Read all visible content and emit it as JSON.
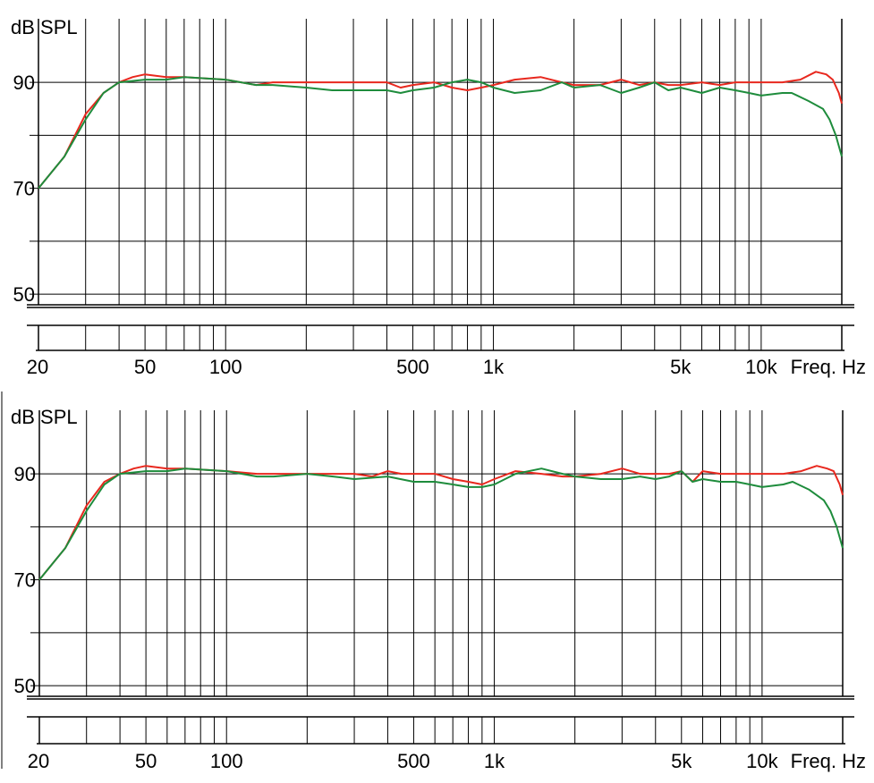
{
  "chart_data": [
    {
      "type": "line",
      "ylabel": "dB SPL",
      "xlabel": "Freq. Hz",
      "xscale": "log",
      "xlim": [
        20,
        20000
      ],
      "ylim": [
        48,
        102
      ],
      "ytick_labels": [
        {
          "v": 90,
          "t": "90"
        },
        {
          "v": 70,
          "t": "70"
        },
        {
          "v": 50,
          "t": "50"
        }
      ],
      "xtick_labels": [
        {
          "f": 20,
          "t": "20"
        },
        {
          "f": 50,
          "t": "50"
        },
        {
          "f": 100,
          "t": "100"
        },
        {
          "f": 500,
          "t": "500"
        },
        {
          "f": 1000,
          "t": "1k"
        },
        {
          "f": 5000,
          "t": "5k"
        },
        {
          "f": 10000,
          "t": "10k"
        }
      ],
      "series": [
        {
          "name": "red",
          "color": "#e8281e",
          "points": [
            [
              20,
              70
            ],
            [
              25,
              76
            ],
            [
              30,
              84
            ],
            [
              35,
              88
            ],
            [
              40,
              90
            ],
            [
              45,
              91
            ],
            [
              50,
              91.5
            ],
            [
              60,
              91
            ],
            [
              70,
              91
            ],
            [
              100,
              90.5
            ],
            [
              130,
              89.5
            ],
            [
              150,
              90
            ],
            [
              200,
              90
            ],
            [
              300,
              90
            ],
            [
              400,
              90
            ],
            [
              450,
              89
            ],
            [
              500,
              89.5
            ],
            [
              600,
              90
            ],
            [
              700,
              89
            ],
            [
              800,
              88.5
            ],
            [
              900,
              89
            ],
            [
              1000,
              89.5
            ],
            [
              1200,
              90.5
            ],
            [
              1500,
              91
            ],
            [
              1800,
              90
            ],
            [
              2000,
              89.5
            ],
            [
              2500,
              89.5
            ],
            [
              3000,
              90.5
            ],
            [
              3500,
              89.5
            ],
            [
              4000,
              90
            ],
            [
              4500,
              89.5
            ],
            [
              5000,
              89.5
            ],
            [
              6000,
              90
            ],
            [
              7000,
              89.5
            ],
            [
              8000,
              90
            ],
            [
              10000,
              90
            ],
            [
              12000,
              90
            ],
            [
              14000,
              90.5
            ],
            [
              16000,
              92
            ],
            [
              17500,
              91.5
            ],
            [
              18500,
              90.5
            ],
            [
              19500,
              88
            ],
            [
              20000,
              86
            ]
          ]
        },
        {
          "name": "green",
          "color": "#1e8c3c",
          "points": [
            [
              20,
              70
            ],
            [
              25,
              76
            ],
            [
              30,
              83
            ],
            [
              35,
              88
            ],
            [
              40,
              90
            ],
            [
              50,
              90.5
            ],
            [
              60,
              90.5
            ],
            [
              70,
              91
            ],
            [
              100,
              90.5
            ],
            [
              130,
              89.5
            ],
            [
              150,
              89.5
            ],
            [
              200,
              89
            ],
            [
              250,
              88.5
            ],
            [
              300,
              88.5
            ],
            [
              400,
              88.5
            ],
            [
              450,
              88
            ],
            [
              500,
              88.5
            ],
            [
              600,
              89
            ],
            [
              700,
              90
            ],
            [
              800,
              90.5
            ],
            [
              900,
              90
            ],
            [
              1000,
              89
            ],
            [
              1200,
              88
            ],
            [
              1500,
              88.5
            ],
            [
              1800,
              90
            ],
            [
              2000,
              89
            ],
            [
              2500,
              89.5
            ],
            [
              3000,
              88
            ],
            [
              3500,
              89
            ],
            [
              4000,
              90
            ],
            [
              4500,
              88.5
            ],
            [
              5000,
              89
            ],
            [
              6000,
              88
            ],
            [
              7000,
              89
            ],
            [
              8000,
              88.5
            ],
            [
              9000,
              88
            ],
            [
              10000,
              87.5
            ],
            [
              12000,
              88
            ],
            [
              13000,
              88
            ],
            [
              15000,
              86.5
            ],
            [
              17000,
              85
            ],
            [
              18000,
              83
            ],
            [
              19000,
              80
            ],
            [
              20000,
              76
            ]
          ]
        }
      ]
    },
    {
      "type": "line",
      "ylabel": "dB SPL",
      "xlabel": "Freq. Hz",
      "xscale": "log",
      "xlim": [
        20,
        20000
      ],
      "ylim": [
        48,
        102
      ],
      "ytick_labels": [
        {
          "v": 90,
          "t": "90"
        },
        {
          "v": 70,
          "t": "70"
        },
        {
          "v": 50,
          "t": "50"
        }
      ],
      "xtick_labels": [
        {
          "f": 20,
          "t": "20"
        },
        {
          "f": 50,
          "t": "50"
        },
        {
          "f": 100,
          "t": "100"
        },
        {
          "f": 500,
          "t": "500"
        },
        {
          "f": 1000,
          "t": "1k"
        },
        {
          "f": 5000,
          "t": "5k"
        },
        {
          "f": 10000,
          "t": "10k"
        }
      ],
      "series": [
        {
          "name": "red",
          "color": "#e8281e",
          "points": [
            [
              20,
              70
            ],
            [
              25,
              76
            ],
            [
              30,
              84
            ],
            [
              35,
              88.5
            ],
            [
              40,
              90
            ],
            [
              45,
              91
            ],
            [
              50,
              91.5
            ],
            [
              60,
              91
            ],
            [
              70,
              91
            ],
            [
              100,
              90.5
            ],
            [
              130,
              90
            ],
            [
              150,
              90
            ],
            [
              200,
              90
            ],
            [
              300,
              90
            ],
            [
              350,
              89.5
            ],
            [
              400,
              90.5
            ],
            [
              450,
              90
            ],
            [
              500,
              90
            ],
            [
              600,
              90
            ],
            [
              700,
              89
            ],
            [
              800,
              88.5
            ],
            [
              900,
              88
            ],
            [
              1000,
              89
            ],
            [
              1200,
              90.5
            ],
            [
              1500,
              90
            ],
            [
              1800,
              89.5
            ],
            [
              2000,
              89.5
            ],
            [
              2500,
              90
            ],
            [
              3000,
              91
            ],
            [
              3500,
              90
            ],
            [
              4000,
              90
            ],
            [
              4500,
              90
            ],
            [
              5000,
              90.5
            ],
            [
              5500,
              88.5
            ],
            [
              6000,
              90.5
            ],
            [
              7000,
              90
            ],
            [
              8000,
              90
            ],
            [
              10000,
              90
            ],
            [
              12000,
              90
            ],
            [
              14000,
              90.5
            ],
            [
              16000,
              91.5
            ],
            [
              17500,
              91
            ],
            [
              18500,
              90.5
            ],
            [
              19500,
              88
            ],
            [
              20000,
              86
            ]
          ]
        },
        {
          "name": "green",
          "color": "#1e8c3c",
          "points": [
            [
              20,
              70
            ],
            [
              25,
              76
            ],
            [
              30,
              83
            ],
            [
              35,
              88
            ],
            [
              40,
              90
            ],
            [
              50,
              90.5
            ],
            [
              60,
              90.5
            ],
            [
              70,
              91
            ],
            [
              100,
              90.5
            ],
            [
              130,
              89.5
            ],
            [
              150,
              89.5
            ],
            [
              200,
              90
            ],
            [
              250,
              89.5
            ],
            [
              300,
              89
            ],
            [
              400,
              89.5
            ],
            [
              500,
              88.5
            ],
            [
              600,
              88.5
            ],
            [
              700,
              88
            ],
            [
              800,
              87.5
            ],
            [
              900,
              87.5
            ],
            [
              1000,
              88
            ],
            [
              1200,
              90
            ],
            [
              1500,
              91
            ],
            [
              1800,
              90
            ],
            [
              2000,
              89.5
            ],
            [
              2500,
              89
            ],
            [
              3000,
              89
            ],
            [
              3500,
              89.5
            ],
            [
              4000,
              89
            ],
            [
              4500,
              89.5
            ],
            [
              5000,
              90.5
            ],
            [
              5500,
              88.5
            ],
            [
              6000,
              89
            ],
            [
              7000,
              88.5
            ],
            [
              8000,
              88.5
            ],
            [
              9000,
              88
            ],
            [
              10000,
              87.5
            ],
            [
              12000,
              88
            ],
            [
              13000,
              88.5
            ],
            [
              15000,
              87
            ],
            [
              17000,
              85
            ],
            [
              18000,
              83
            ],
            [
              19000,
              80
            ],
            [
              20000,
              76
            ]
          ]
        }
      ]
    }
  ]
}
